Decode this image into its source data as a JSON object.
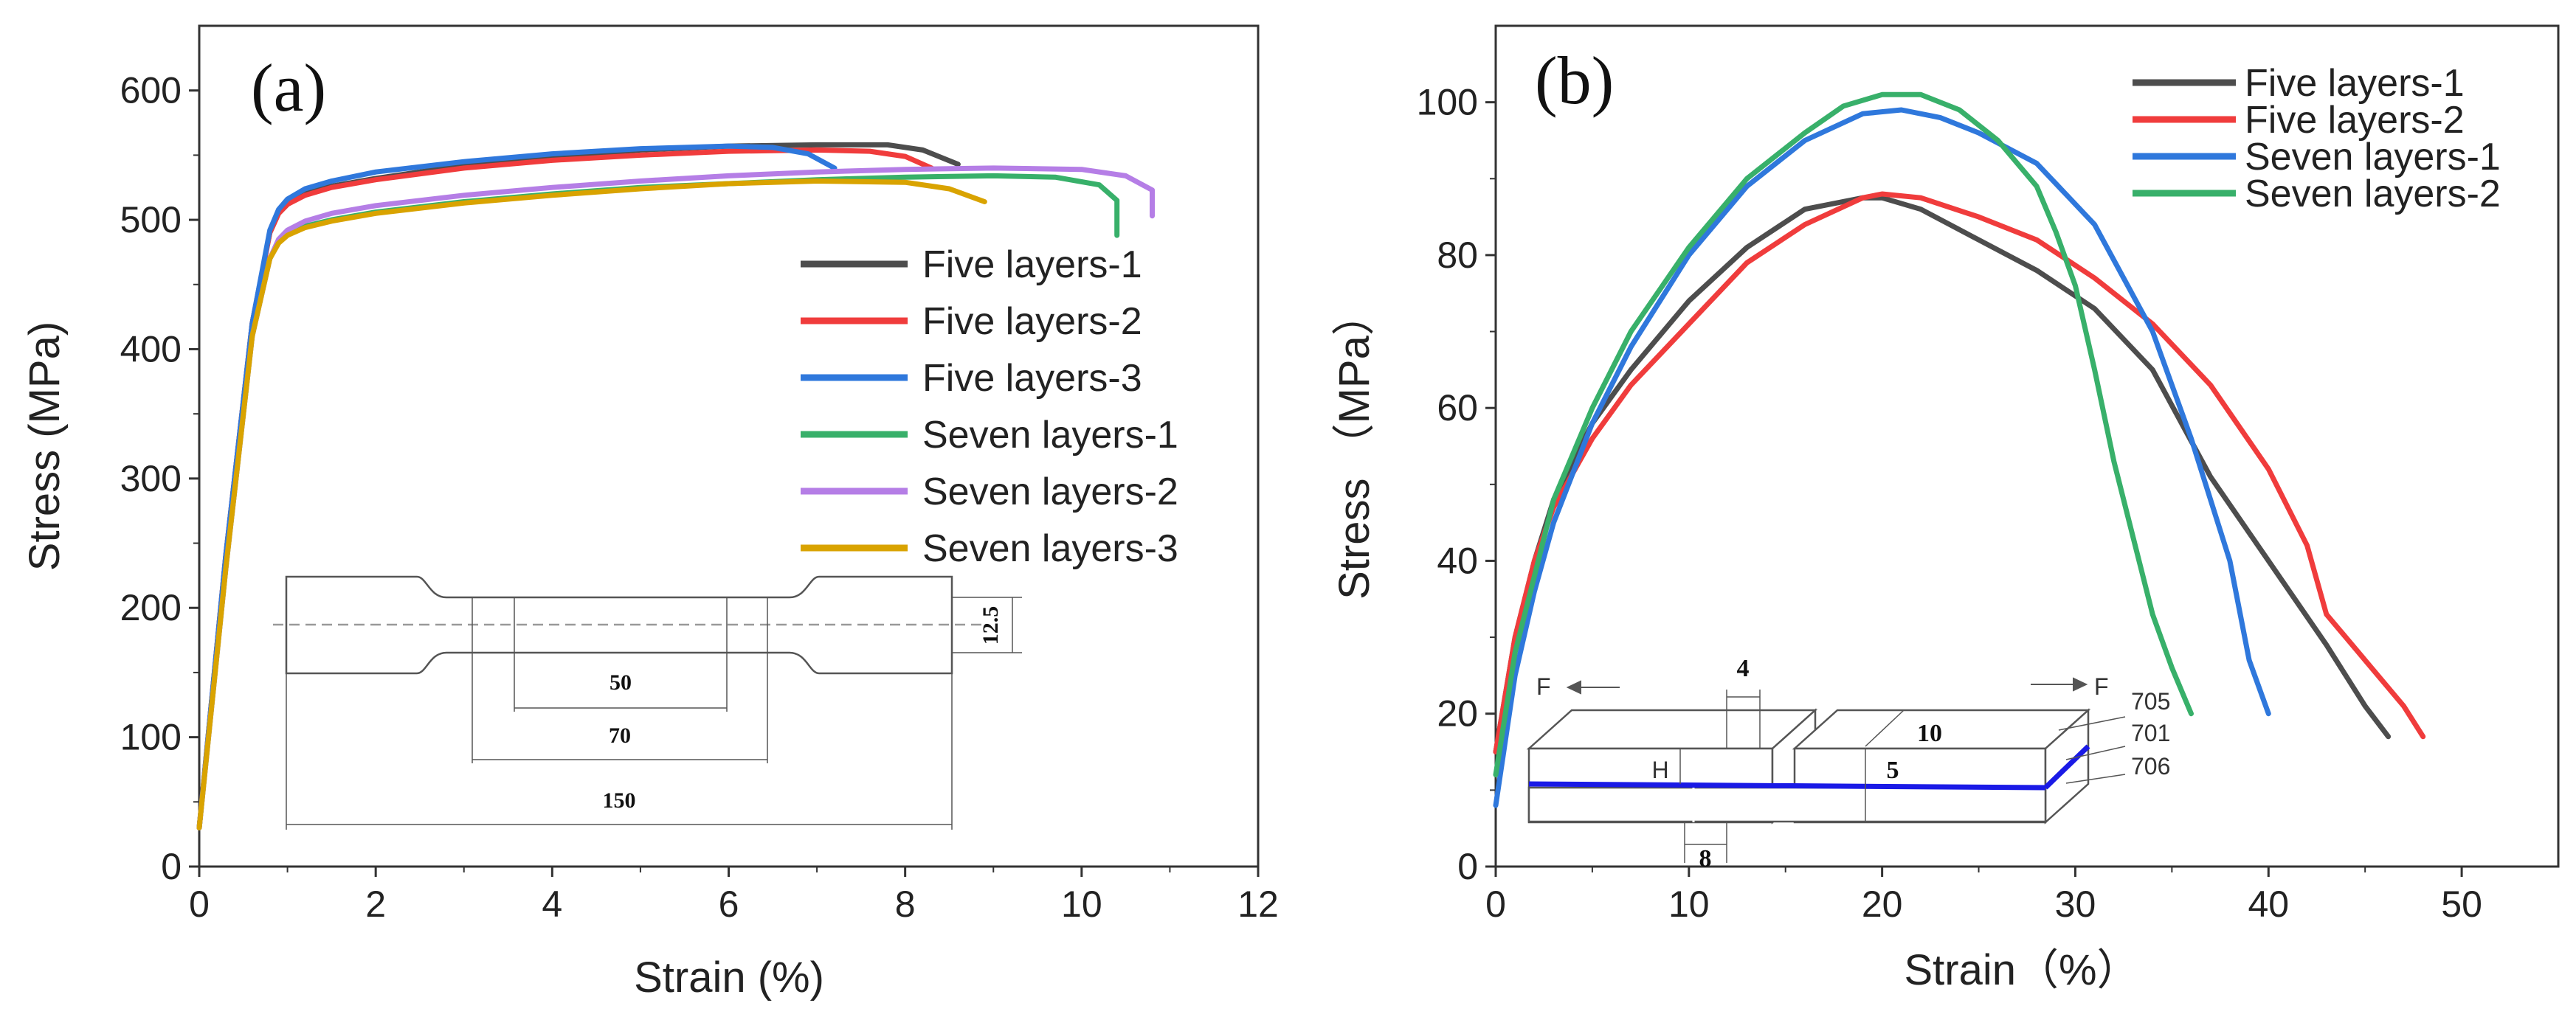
{
  "chart_data": [
    {
      "type": "line",
      "panel_label": "(a)",
      "xlabel": "Strain (%)",
      "ylabel": "Stress (MPa)",
      "xlim": [
        0,
        12
      ],
      "ylim": [
        0,
        650
      ],
      "xticks": [
        0,
        2,
        4,
        6,
        8,
        10,
        12
      ],
      "yticks": [
        0,
        100,
        200,
        300,
        400,
        500,
        600
      ],
      "legend_position": "right",
      "series": [
        {
          "name": "Five layers-1",
          "color": "#4d4d4d",
          "x": [
            0,
            0.3,
            0.6,
            0.8,
            0.9,
            1.0,
            1.2,
            1.5,
            2.0,
            3.0,
            4.0,
            5.0,
            6.0,
            7.0,
            7.8,
            8.2,
            8.6
          ],
          "y": [
            30,
            240,
            420,
            490,
            505,
            512,
            520,
            526,
            532,
            542,
            549,
            554,
            557,
            558,
            558,
            554,
            543
          ]
        },
        {
          "name": "Five layers-2",
          "color": "#f03c3c",
          "x": [
            0,
            0.3,
            0.6,
            0.8,
            0.9,
            1.0,
            1.2,
            1.5,
            2.0,
            3.0,
            4.0,
            5.0,
            6.0,
            7.0,
            7.6,
            8.0,
            8.3
          ],
          "y": [
            30,
            240,
            420,
            490,
            505,
            512,
            519,
            525,
            531,
            540,
            546,
            550,
            553,
            554,
            553,
            549,
            540
          ]
        },
        {
          "name": "Five layers-3",
          "color": "#2f78dc",
          "x": [
            0,
            0.3,
            0.6,
            0.8,
            0.9,
            1.0,
            1.2,
            1.5,
            2.0,
            3.0,
            4.0,
            5.0,
            6.0,
            6.5,
            6.9,
            7.2
          ],
          "y": [
            30,
            240,
            420,
            492,
            508,
            516,
            524,
            530,
            537,
            545,
            551,
            555,
            557,
            556,
            551,
            540
          ]
        },
        {
          "name": "Seven layers-1",
          "color": "#38b06a",
          "x": [
            0,
            0.3,
            0.6,
            0.8,
            0.9,
            1.0,
            1.2,
            1.5,
            2.0,
            3.0,
            4.0,
            5.0,
            6.0,
            7.0,
            8.0,
            9.0,
            9.7,
            10.2,
            10.4,
            10.4
          ],
          "y": [
            30,
            230,
            410,
            470,
            483,
            490,
            495,
            500,
            506,
            514,
            520,
            525,
            528,
            531,
            533,
            534,
            533,
            527,
            515,
            488
          ]
        },
        {
          "name": "Seven layers-2",
          "color": "#b57ee6",
          "x": [
            0,
            0.3,
            0.6,
            0.8,
            0.9,
            1.0,
            1.2,
            1.5,
            2.0,
            3.0,
            4.0,
            5.0,
            6.0,
            7.0,
            8.0,
            9.0,
            10.0,
            10.5,
            10.8,
            10.8
          ],
          "y": [
            30,
            230,
            410,
            470,
            485,
            492,
            499,
            505,
            511,
            519,
            525,
            530,
            534,
            537,
            539,
            540,
            539,
            534,
            523,
            503
          ]
        },
        {
          "name": "Seven layers-3",
          "color": "#d9a300",
          "x": [
            0,
            0.3,
            0.6,
            0.8,
            0.9,
            1.0,
            1.2,
            1.5,
            2.0,
            3.0,
            4.0,
            5.0,
            6.0,
            7.0,
            8.0,
            8.5,
            8.9
          ],
          "y": [
            30,
            230,
            410,
            470,
            482,
            488,
            494,
            499,
            505,
            513,
            519,
            524,
            528,
            530,
            529,
            524,
            514
          ]
        }
      ],
      "inset": {
        "dims": [
          "12.5",
          "50",
          "70",
          "150"
        ]
      }
    },
    {
      "type": "line",
      "panel_label": "(b)",
      "xlabel": "Strain（%）",
      "ylabel": "Stress （MPa）",
      "xlim": [
        0,
        55
      ],
      "ylim": [
        0,
        110
      ],
      "xticks": [
        0,
        10,
        20,
        30,
        40,
        50
      ],
      "yticks": [
        0,
        20,
        40,
        60,
        80,
        100
      ],
      "legend_position": "top-right",
      "series": [
        {
          "name": "Five layers-1",
          "color": "#4d4d4d",
          "x": [
            0,
            1,
            2,
            3,
            5,
            7,
            10,
            13,
            16,
            19,
            20,
            22,
            25,
            28,
            31,
            34,
            37,
            40,
            43,
            45,
            46.2
          ],
          "y": [
            15,
            30,
            40,
            48,
            58,
            65,
            74,
            81,
            86,
            87.5,
            87.5,
            86,
            82,
            78,
            73,
            65,
            51,
            40,
            29,
            21,
            17
          ]
        },
        {
          "name": "Five layers-2",
          "color": "#f03c3c",
          "x": [
            0,
            1,
            2,
            3,
            5,
            7,
            10,
            13,
            16,
            19,
            20,
            22,
            25,
            28,
            31,
            34,
            37,
            40,
            42,
            43,
            45,
            47,
            48
          ],
          "y": [
            15,
            30,
            40,
            47,
            56,
            63,
            71,
            79,
            84,
            87.5,
            88,
            87.5,
            85,
            82,
            77,
            71,
            63,
            52,
            42,
            33,
            27,
            21,
            17
          ]
        },
        {
          "name": "Seven layers-1",
          "color": "#2f78dc",
          "x": [
            0,
            1,
            2,
            3,
            5,
            7,
            10,
            13,
            16,
            19,
            21,
            23,
            25,
            28,
            31,
            34,
            36,
            38,
            39,
            40
          ],
          "y": [
            8,
            25,
            36,
            45,
            58,
            68,
            80,
            89,
            95,
            98.5,
            99,
            98,
            96,
            92,
            84,
            70,
            56,
            40,
            27,
            20
          ]
        },
        {
          "name": "Seven layers-2",
          "color": "#38b06a",
          "x": [
            0,
            1,
            2,
            3,
            5,
            7,
            10,
            13,
            16,
            18,
            20,
            22,
            24,
            26,
            28,
            29,
            30,
            31,
            32,
            33,
            34,
            35,
            36
          ],
          "y": [
            12,
            28,
            38,
            48,
            60,
            70,
            81,
            90,
            96,
            99.5,
            101,
            101,
            99,
            95,
            89,
            83,
            76,
            65,
            53,
            43,
            33,
            26,
            20
          ]
        }
      ],
      "inset": {
        "force_label": "F",
        "dims": [
          "4",
          "10",
          "5",
          "H",
          "8"
        ],
        "layer_labels": [
          "705",
          "701",
          "706"
        ]
      }
    }
  ]
}
